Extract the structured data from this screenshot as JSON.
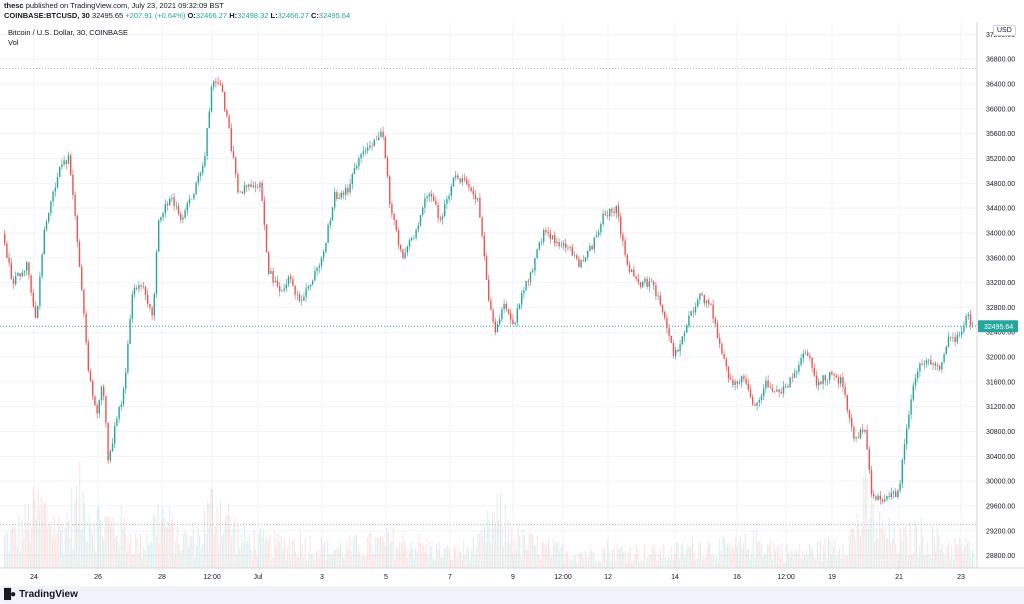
{
  "header": {
    "author": "thesc",
    "published_text": "published on TradingView.com, July 23, 2021 09:32:09 BST",
    "symbol": "COINBASE:BTCUSD, 30",
    "last_price": "32495.65",
    "change": "+207.91 (+0.64%)",
    "open_label": "O:",
    "open_value": "32466.27",
    "high_label": "H:",
    "high_value": "32498.32",
    "low_label": "L:",
    "low_value": "32466.27",
    "close_label": "C:",
    "close_value": "32495.64"
  },
  "legend": {
    "title": "Bitcoin / U.S. Dollar, 30, COINBASE",
    "volume_label": "Vol"
  },
  "currency_badge": "USD",
  "footer": {
    "brand": "TradingView"
  },
  "colors": {
    "up": "#26a69a",
    "down": "#ef5350",
    "grid": "#f0f3fa",
    "price_line": "#26a69a"
  },
  "chart_data": {
    "type": "candlestick",
    "symbol": "COINBASE:BTCUSD",
    "interval": "30",
    "x_tick_labels": [
      "24",
      "26",
      "28",
      "12:00",
      "Jul",
      "3",
      "5",
      "7",
      "9",
      "12:00",
      "12",
      "14",
      "16",
      "12:00",
      "19",
      "21",
      "23"
    ],
    "y_tick_labels": [
      "37200.00",
      "36800.00",
      "36400.00",
      "36000.00",
      "35600.00",
      "35200.00",
      "34800.00",
      "34400.00",
      "34000.00",
      "33600.00",
      "33200.00",
      "32800.00",
      "32400.00",
      "32000.00",
      "31600.00",
      "31200.00",
      "30800.00",
      "30400.00",
      "30000.00",
      "29600.00",
      "29200.00",
      "28800.00"
    ],
    "ylim": [
      28600,
      37400
    ],
    "last_price_label": "32495.64",
    "period_high": 36650,
    "period_low": 29300,
    "price_path": [
      [
        0,
        34300
      ],
      [
        14,
        33200
      ],
      [
        28,
        33500
      ],
      [
        38,
        32600
      ],
      [
        46,
        34100
      ],
      [
        60,
        35000
      ],
      [
        70,
        35200
      ],
      [
        80,
        33700
      ],
      [
        90,
        31800
      ],
      [
        98,
        31000
      ],
      [
        104,
        31700
      ],
      [
        110,
        30300
      ],
      [
        118,
        31000
      ],
      [
        126,
        31500
      ],
      [
        134,
        33100
      ],
      [
        146,
        33100
      ],
      [
        154,
        32600
      ],
      [
        160,
        34200
      ],
      [
        172,
        34600
      ],
      [
        182,
        34200
      ],
      [
        194,
        34600
      ],
      [
        206,
        35200
      ],
      [
        214,
        36500
      ],
      [
        222,
        36400
      ],
      [
        230,
        35700
      ],
      [
        240,
        34600
      ],
      [
        250,
        34800
      ],
      [
        262,
        34800
      ],
      [
        270,
        33400
      ],
      [
        282,
        33000
      ],
      [
        290,
        33300
      ],
      [
        300,
        32900
      ],
      [
        312,
        33200
      ],
      [
        324,
        33600
      ],
      [
        336,
        34600
      ],
      [
        350,
        34700
      ],
      [
        362,
        35300
      ],
      [
        376,
        35500
      ],
      [
        384,
        35600
      ],
      [
        392,
        34400
      ],
      [
        404,
        33600
      ],
      [
        416,
        34000
      ],
      [
        430,
        34700
      ],
      [
        442,
        34200
      ],
      [
        456,
        34900
      ],
      [
        468,
        34800
      ],
      [
        480,
        34500
      ],
      [
        488,
        33200
      ],
      [
        496,
        32400
      ],
      [
        506,
        32900
      ],
      [
        516,
        32500
      ],
      [
        524,
        33100
      ],
      [
        534,
        33400
      ],
      [
        546,
        34100
      ],
      [
        558,
        33800
      ],
      [
        570,
        33800
      ],
      [
        580,
        33500
      ],
      [
        594,
        33800
      ],
      [
        606,
        34300
      ],
      [
        618,
        34400
      ],
      [
        628,
        33500
      ],
      [
        640,
        33200
      ],
      [
        654,
        33200
      ],
      [
        664,
        32700
      ],
      [
        676,
        32000
      ],
      [
        688,
        32500
      ],
      [
        700,
        33000
      ],
      [
        712,
        32800
      ],
      [
        724,
        32000
      ],
      [
        734,
        31500
      ],
      [
        744,
        31700
      ],
      [
        756,
        31200
      ],
      [
        768,
        31600
      ],
      [
        782,
        31400
      ],
      [
        796,
        31700
      ],
      [
        808,
        32100
      ],
      [
        818,
        31600
      ],
      [
        830,
        31700
      ],
      [
        844,
        31600
      ],
      [
        856,
        30600
      ],
      [
        866,
        30900
      ],
      [
        874,
        29700
      ],
      [
        886,
        29700
      ],
      [
        900,
        29800
      ],
      [
        908,
        30800
      ],
      [
        916,
        31700
      ],
      [
        928,
        32000
      ],
      [
        940,
        31800
      ],
      [
        950,
        32300
      ],
      [
        960,
        32300
      ],
      [
        968,
        32700
      ],
      [
        974,
        32500
      ]
    ],
    "volume_scale": "relative (0–1)",
    "volume_profile": [
      [
        0,
        0.35
      ],
      [
        20,
        0.5
      ],
      [
        40,
        0.8
      ],
      [
        60,
        0.5
      ],
      [
        80,
        0.9
      ],
      [
        100,
        0.6
      ],
      [
        120,
        0.55
      ],
      [
        140,
        0.3
      ],
      [
        160,
        0.7
      ],
      [
        180,
        0.35
      ],
      [
        200,
        0.45
      ],
      [
        215,
        0.9
      ],
      [
        240,
        0.4
      ],
      [
        270,
        0.3
      ],
      [
        300,
        0.35
      ],
      [
        330,
        0.25
      ],
      [
        360,
        0.3
      ],
      [
        390,
        0.35
      ],
      [
        420,
        0.3
      ],
      [
        450,
        0.2
      ],
      [
        480,
        0.3
      ],
      [
        495,
        0.7
      ],
      [
        520,
        0.35
      ],
      [
        550,
        0.25
      ],
      [
        580,
        0.2
      ],
      [
        610,
        0.25
      ],
      [
        640,
        0.2
      ],
      [
        670,
        0.2
      ],
      [
        700,
        0.3
      ],
      [
        730,
        0.25
      ],
      [
        760,
        0.35
      ],
      [
        790,
        0.2
      ],
      [
        820,
        0.25
      ],
      [
        850,
        0.4
      ],
      [
        865,
        0.85
      ],
      [
        880,
        0.5
      ],
      [
        900,
        0.35
      ],
      [
        920,
        0.45
      ],
      [
        945,
        0.3
      ],
      [
        975,
        0.25
      ]
    ]
  }
}
